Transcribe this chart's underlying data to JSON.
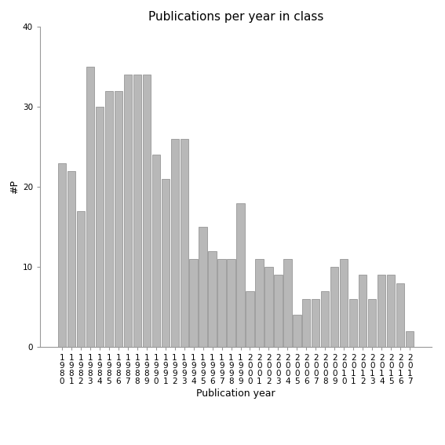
{
  "title": "Publications per year in class",
  "xlabel": "Publication year",
  "ylabel": "#P",
  "years": [
    "1980",
    "1981",
    "1982",
    "1983",
    "1984",
    "1985",
    "1986",
    "1987",
    "1988",
    "1989",
    "1990",
    "1991",
    "1992",
    "1993",
    "1994",
    "1995",
    "1996",
    "1997",
    "1998",
    "1999",
    "2000",
    "2001",
    "2002",
    "2003",
    "2004",
    "2005",
    "2006",
    "2007",
    "2008",
    "2009",
    "2010",
    "2011",
    "2012",
    "2013",
    "2014",
    "2015",
    "2016",
    "2017"
  ],
  "values": [
    23,
    22,
    17,
    35,
    30,
    32,
    32,
    34,
    34,
    34,
    24,
    21,
    26,
    26,
    11,
    15,
    12,
    11,
    11,
    18,
    7,
    11,
    10,
    9,
    11,
    4,
    6,
    6,
    7,
    10,
    11,
    6,
    9,
    6,
    9,
    9,
    8,
    2
  ],
  "bar_color": "#b8b8b8",
  "bar_edge_color": "#888888",
  "ylim": [
    0,
    40
  ],
  "yticks": [
    0,
    10,
    20,
    30,
    40
  ],
  "background_color": "#ffffff",
  "title_fontsize": 11,
  "label_fontsize": 9,
  "tick_fontsize": 7.5
}
